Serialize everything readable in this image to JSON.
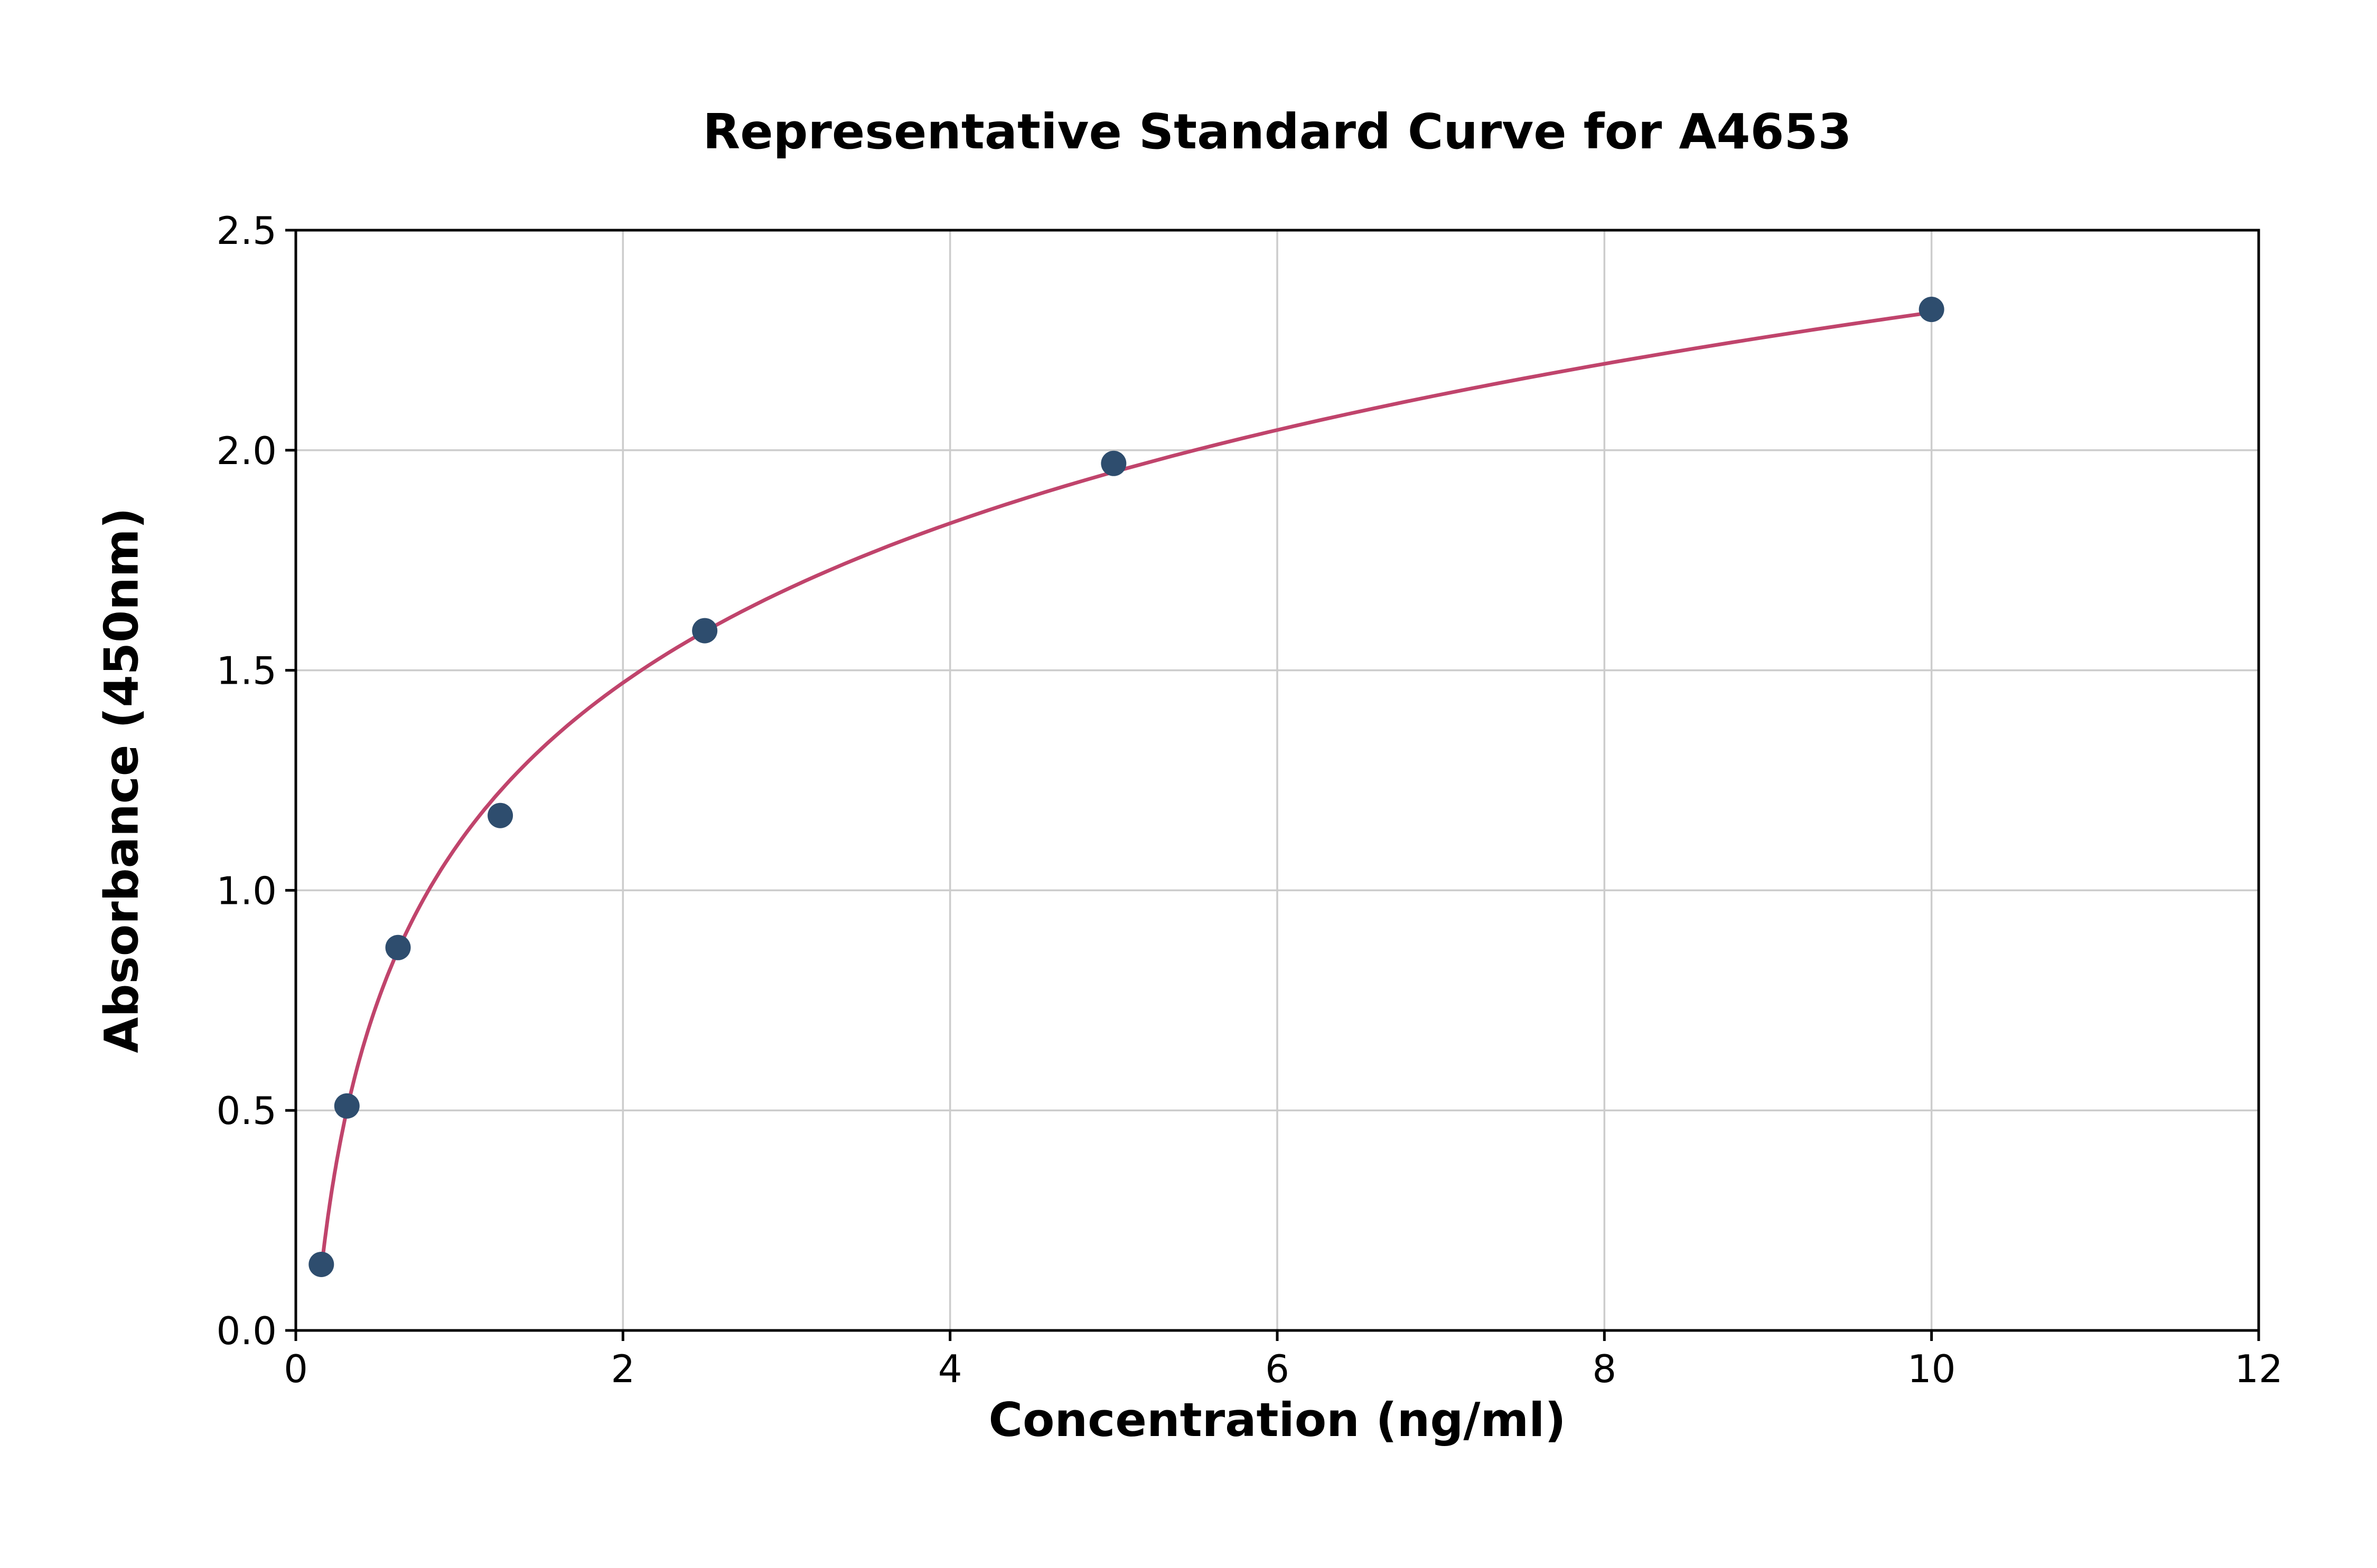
{
  "chart_data": {
    "type": "scatter",
    "title": "Representative Standard Curve for A4653",
    "xlabel": "Concentration (ng/ml)",
    "ylabel": "Absorbance (450nm)",
    "x": [
      0.156,
      0.3125,
      0.625,
      1.25,
      2.5,
      5,
      10
    ],
    "y": [
      0.15,
      0.51,
      0.87,
      1.17,
      1.59,
      1.97,
      2.32
    ],
    "xlim": [
      0,
      12
    ],
    "ylim": [
      0,
      2.5
    ],
    "xticks": [
      0,
      2,
      4,
      6,
      8,
      10,
      12
    ],
    "xtick_labels": [
      "0",
      "2",
      "4",
      "6",
      "8",
      "10",
      "12"
    ],
    "yticks": [
      0,
      0.5,
      1.0,
      1.5,
      2.0,
      2.5
    ],
    "ytick_labels": [
      "0.0",
      "0.5",
      "1.0",
      "1.5",
      "2.0",
      "2.5"
    ],
    "grid": true,
    "legend": "none",
    "fit": "logarithmic",
    "colors": {
      "point": "#2e4d6e",
      "curve": "#c0446c",
      "grid": "#cccccc",
      "frame": "#000000",
      "background": "#ffffff"
    }
  }
}
